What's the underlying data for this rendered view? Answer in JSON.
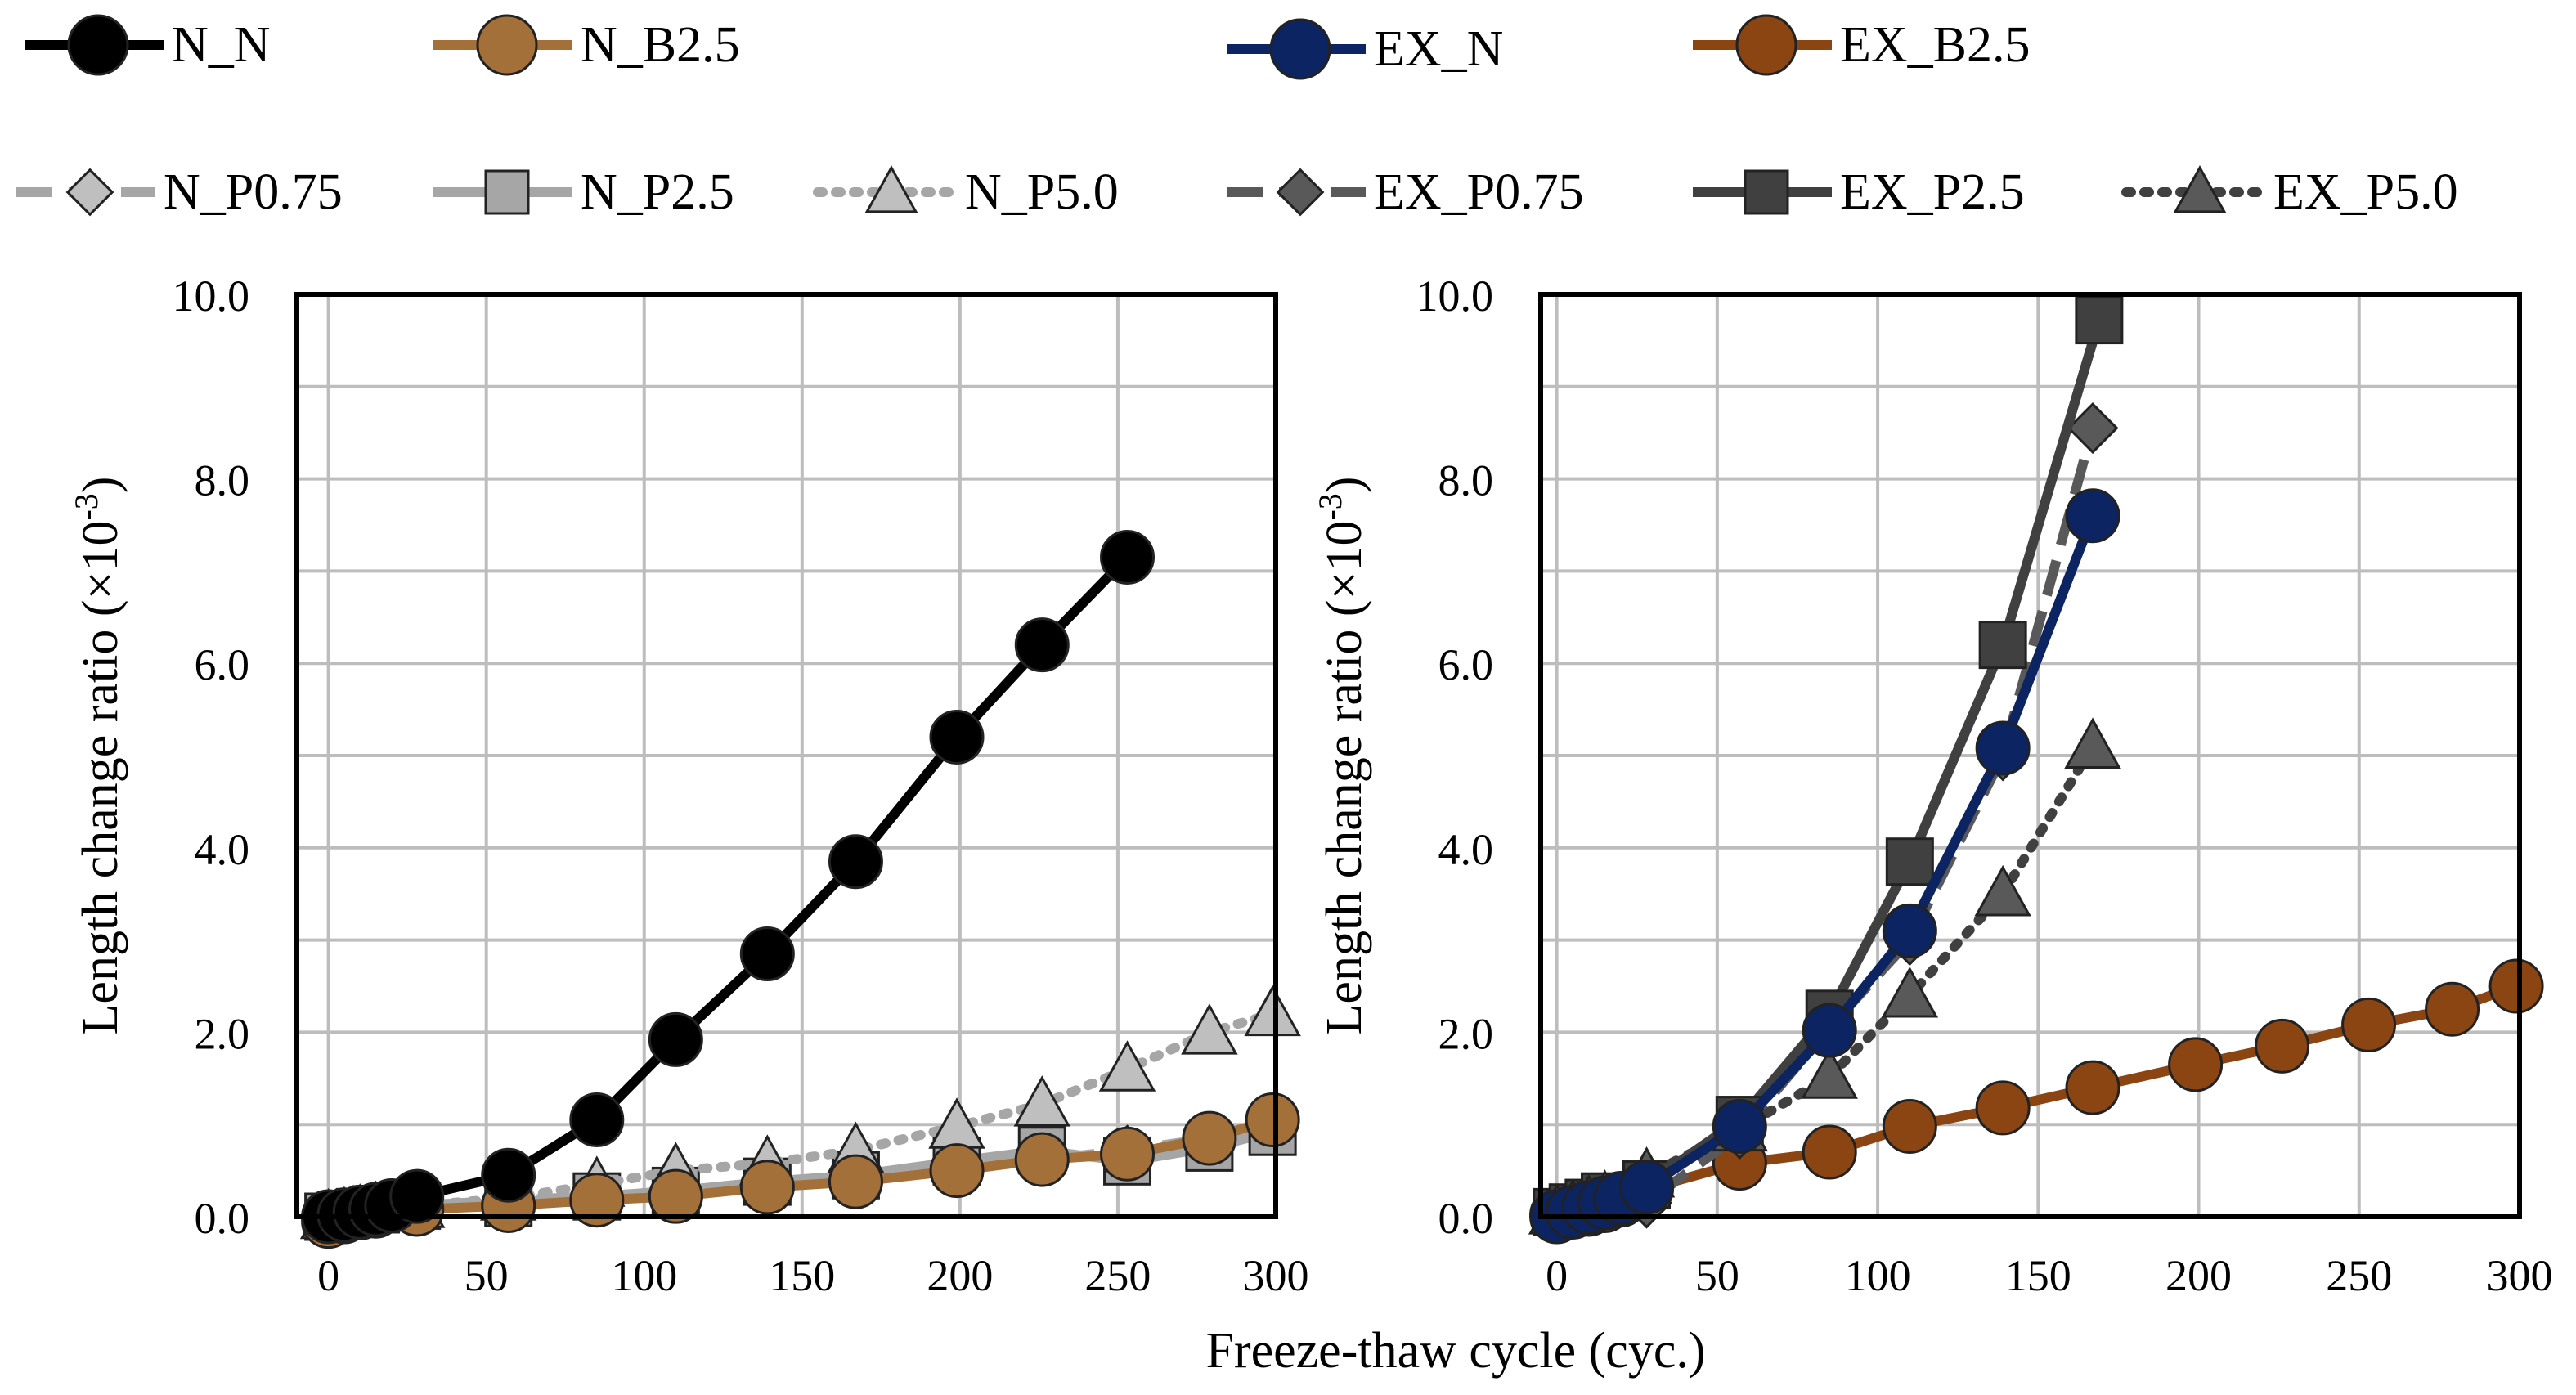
{
  "xlabel": "Freeze-thaw cycle (cyc.)",
  "legend": [
    {
      "key": "N_N",
      "label": "N_N",
      "color": "#000000",
      "marker": "circle",
      "marker_fill": "#000000",
      "dash": "solid"
    },
    {
      "key": "N_B2.5",
      "label": "N_B2.5",
      "color": "#A4703A",
      "marker": "circle",
      "marker_fill": "#A4703A",
      "dash": "solid"
    },
    {
      "key": "EX_N",
      "label": "EX_N",
      "color": "#0C2461",
      "marker": "circle",
      "marker_fill": "#0C2461",
      "dash": "solid"
    },
    {
      "key": "EX_B2.5",
      "label": "EX_B2.5",
      "color": "#8B4513",
      "marker": "circle",
      "marker_fill": "#8B4513",
      "dash": "solid"
    },
    {
      "key": "N_P0.75",
      "label": "N_P0.75",
      "color": "#A6A6A6",
      "marker": "diamond",
      "marker_fill": "#BFBFBF",
      "dash": "dash"
    },
    {
      "key": "N_P2.5",
      "label": "N_P2.5",
      "color": "#A6A6A6",
      "marker": "square",
      "marker_fill": "#A6A6A6",
      "dash": "solid"
    },
    {
      "key": "N_P5.0",
      "label": "N_P5.0",
      "color": "#A6A6A6",
      "marker": "triangle",
      "marker_fill": "#BFBFBF",
      "dash": "dot"
    },
    {
      "key": "EX_P0.75",
      "label": "EX_P0.75",
      "color": "#595959",
      "marker": "diamond",
      "marker_fill": "#595959",
      "dash": "dash"
    },
    {
      "key": "EX_P2.5",
      "label": "EX_P2.5",
      "color": "#404040",
      "marker": "square",
      "marker_fill": "#404040",
      "dash": "solid"
    },
    {
      "key": "EX_P5.0",
      "label": "EX_P5.0",
      "color": "#404040",
      "marker": "triangle",
      "marker_fill": "#595959",
      "dash": "dot"
    }
  ],
  "chart_data": [
    {
      "type": "line",
      "ylabel": "Length change ratio (×10",
      "ylabel_sup": "-3",
      "ylabel_end": ")",
      "xlim": [
        -10,
        300
      ],
      "ylim": [
        0,
        10
      ],
      "xticks": [
        "0",
        "50",
        "100",
        "150",
        "200",
        "250",
        "300"
      ],
      "yticks": [
        "0.0",
        "2.0",
        "4.0",
        "6.0",
        "8.0",
        "10.0"
      ],
      "grid": true,
      "series": [
        {
          "name": "N_P0.75",
          "x": [
            0,
            5,
            10,
            15,
            28,
            57,
            85,
            110,
            139,
            167,
            199,
            226,
            253,
            279,
            299
          ],
          "y": [
            0.02,
            0.04,
            0.06,
            0.08,
            0.12,
            0.18,
            0.22,
            0.28,
            0.35,
            0.42,
            0.52,
            0.62,
            0.72,
            0.85,
            1.0
          ]
        },
        {
          "name": "N_P2.5",
          "x": [
            0,
            5,
            10,
            15,
            28,
            57,
            85,
            110,
            139,
            167,
            199,
            226,
            253,
            279,
            299
          ],
          "y": [
            0.0,
            0.02,
            0.05,
            0.08,
            0.12,
            0.15,
            0.22,
            0.28,
            0.38,
            0.45,
            0.6,
            0.72,
            0.6,
            0.75,
            0.92
          ]
        },
        {
          "name": "N_P5.0",
          "x": [
            0,
            5,
            10,
            15,
            28,
            57,
            85,
            110,
            139,
            167,
            199,
            226,
            253,
            279,
            299
          ],
          "y": [
            0.0,
            0.02,
            0.05,
            0.08,
            0.12,
            0.2,
            0.35,
            0.5,
            0.58,
            0.72,
            0.98,
            1.22,
            1.6,
            2.0,
            2.2
          ]
        },
        {
          "name": "N_B2.5",
          "x": [
            0,
            5,
            10,
            15,
            28,
            57,
            85,
            110,
            139,
            167,
            199,
            226,
            253,
            279,
            299
          ],
          "y": [
            -0.05,
            0.0,
            0.04,
            0.06,
            0.08,
            0.12,
            0.18,
            0.22,
            0.32,
            0.38,
            0.5,
            0.62,
            0.68,
            0.85,
            1.05
          ]
        },
        {
          "name": "N_N",
          "x": [
            0,
            5,
            10,
            15,
            20,
            28,
            57,
            85,
            110,
            139,
            167,
            199,
            226,
            253
          ],
          "y": [
            0.0,
            0.02,
            0.05,
            0.08,
            0.12,
            0.22,
            0.45,
            1.05,
            1.92,
            2.85,
            3.85,
            5.2,
            6.2,
            7.15
          ]
        }
      ]
    },
    {
      "type": "line",
      "ylabel": "Length change ratio (×10",
      "ylabel_sup": "-3",
      "ylabel_end": ")",
      "xlim": [
        -5,
        300
      ],
      "ylim": [
        0,
        10
      ],
      "xticks": [
        "0",
        "50",
        "100",
        "150",
        "200",
        "250",
        "300"
      ],
      "yticks": [
        "0.0",
        "2.0",
        "4.0",
        "6.0",
        "8.0",
        "10.0"
      ],
      "grid": true,
      "series": [
        {
          "name": "EX_B2.5",
          "x": [
            0,
            5,
            10,
            15,
            20,
            28,
            57,
            85,
            110,
            139,
            167,
            199,
            226,
            253,
            279,
            299
          ],
          "y": [
            0.02,
            0.05,
            0.08,
            0.12,
            0.18,
            0.3,
            0.58,
            0.7,
            0.98,
            1.18,
            1.4,
            1.65,
            1.85,
            2.08,
            2.25,
            2.5
          ]
        },
        {
          "name": "EX_P0.75",
          "x": [
            0,
            5,
            10,
            15,
            28,
            57,
            85,
            110,
            139,
            167
          ],
          "y": [
            0.02,
            0.05,
            0.08,
            0.12,
            0.15,
            0.9,
            2.05,
            3.0,
            5.0,
            8.55
          ]
        },
        {
          "name": "EX_P2.5",
          "x": [
            0,
            5,
            10,
            15,
            28,
            57,
            85,
            110,
            139,
            169
          ],
          "y": [
            0.05,
            0.1,
            0.15,
            0.22,
            0.35,
            1.05,
            2.2,
            3.85,
            6.2,
            9.72
          ]
        },
        {
          "name": "EX_P5.0",
          "x": [
            0,
            5,
            10,
            15,
            28,
            57,
            85,
            110,
            139,
            167
          ],
          "y": [
            0.05,
            0.1,
            0.15,
            0.2,
            0.45,
            0.95,
            1.52,
            2.4,
            3.5,
            5.1
          ]
        },
        {
          "name": "EX_N",
          "x": [
            0,
            5,
            10,
            15,
            20,
            28,
            57,
            85,
            110,
            139,
            167
          ],
          "y": [
            0.0,
            0.05,
            0.1,
            0.15,
            0.2,
            0.32,
            0.98,
            2.02,
            3.1,
            5.08,
            7.6
          ]
        }
      ]
    }
  ]
}
